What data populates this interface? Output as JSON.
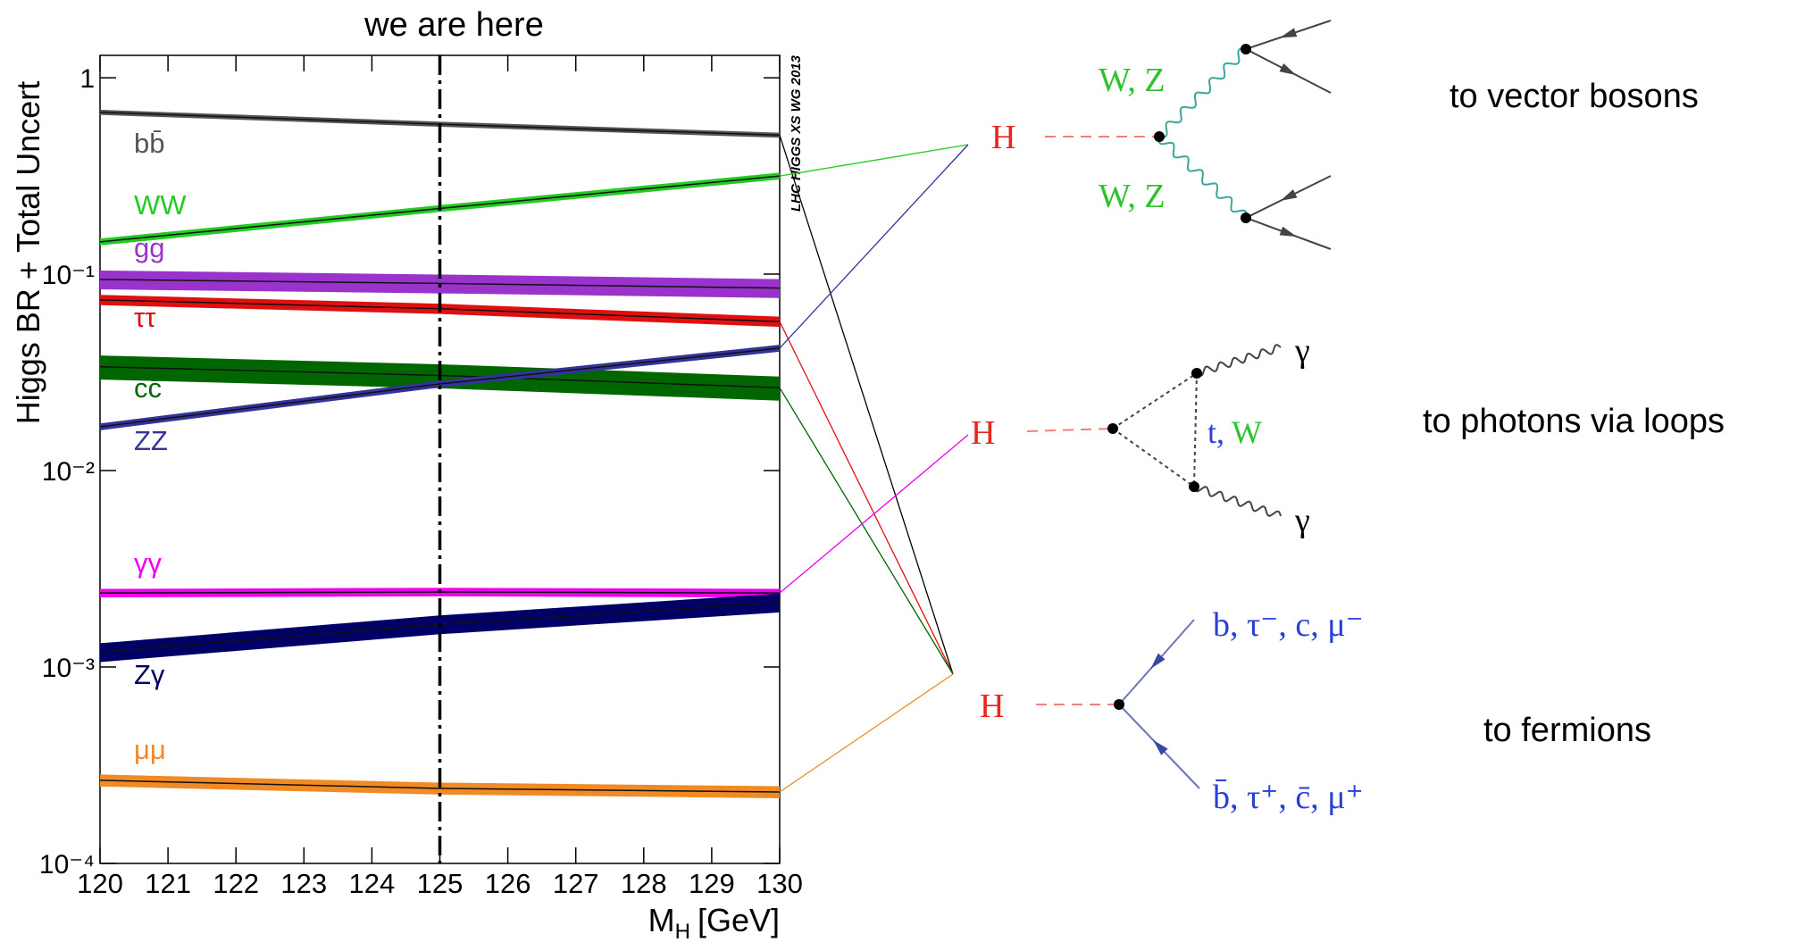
{
  "chart_data": {
    "type": "line",
    "annotation": "we are here",
    "marker_x": 125,
    "ylabel": "Higgs BR + Total Uncert",
    "xlabel": {
      "main": "M",
      "sub": "H",
      "unit": "[GeV]"
    },
    "watermark": "LHC HIGGS XS WG 2013",
    "x": [
      120,
      125,
      130
    ],
    "xlim": [
      120,
      130
    ],
    "xticks": [
      120,
      121,
      122,
      123,
      124,
      125,
      126,
      127,
      128,
      129,
      130
    ],
    "ylim": [
      0.0001,
      1.3
    ],
    "log_y": true,
    "yticks": [
      {
        "value": 0.0001,
        "label": "10⁻⁴"
      },
      {
        "value": 0.001,
        "label": "10⁻³"
      },
      {
        "value": 0.01,
        "label": "10⁻²"
      },
      {
        "value": 0.1,
        "label": "10⁻¹"
      },
      1
    ],
    "series": [
      {
        "name": "bb̄",
        "color": "#555555",
        "values": [
          0.667,
          0.58,
          0.51
        ],
        "uncertainty": 3,
        "decay": 2
      },
      {
        "name": "WW",
        "color": "#22cc22",
        "values": [
          0.146,
          0.216,
          0.316
        ],
        "uncertainty": 4,
        "decay": 0
      },
      {
        "name": "gg",
        "color": "#9933cc",
        "values": [
          0.094,
          0.0897,
          0.085
        ],
        "uncertainty": 11
      },
      {
        "name": "ττ",
        "color": "#e01010",
        "values": [
          0.074,
          0.0667,
          0.0573
        ],
        "uncertainty": 6,
        "decay": 2
      },
      {
        "name": "cc̄",
        "color": "#006600",
        "values": [
          0.0338,
          0.0305,
          0.0264
        ],
        "uncertainty": 14,
        "decay": 2
      },
      {
        "name": "ZZ",
        "color": "#333399",
        "values": [
          0.0167,
          0.0276,
          0.042
        ],
        "uncertainty": 4,
        "decay": 0
      },
      {
        "name": "γγ",
        "color": "#ee00ee",
        "values": [
          0.00238,
          0.00241,
          0.00238
        ],
        "uncertainty": 5,
        "decay": 1
      },
      {
        "name": "Zγ",
        "color": "#000066",
        "values": [
          0.00119,
          0.00165,
          0.00213
        ],
        "uncertainty": 11
      },
      {
        "name": "μμ",
        "color": "#f08a24",
        "values": [
          0.000265,
          0.000241,
          0.000231
        ],
        "uncertainty": 7,
        "decay": 2
      }
    ]
  },
  "diagrams": [
    {
      "higgs": "H",
      "caption": "to vector bosons",
      "labels": [
        "W, Z",
        "W, Z"
      ]
    },
    {
      "higgs": "H",
      "caption": "to photons via loops",
      "labels": [
        "γ",
        "γ"
      ],
      "loop": [
        "t,",
        "W"
      ]
    },
    {
      "higgs": "H",
      "caption": "to fermions",
      "labels": [
        "b, τ⁻, c, μ⁻",
        "b̄, τ⁺, c̄, μ⁺"
      ]
    }
  ]
}
